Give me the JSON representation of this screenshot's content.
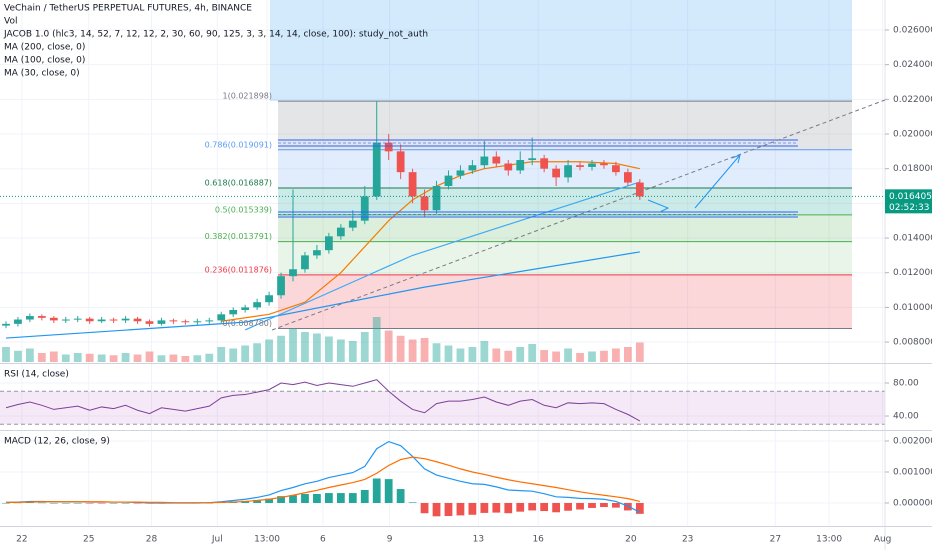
{
  "chart_data": [
    {
      "type": "candlestick",
      "title": "VeChain / TetherUS PERPETUAL FUTURES, 4h, BINANCE",
      "study": "JACOB 1.0 (hlc3, 14, 52, 7, 12, 12, 2, 30, 60, 90, 125, 3, 3, 14, 14, close, 100): study_not_auth",
      "up_color": "#26a69a",
      "down_color": "#ef5350",
      "xlim": [
        -0.5,
        73.5
      ],
      "xticks": [
        {
          "value": 1.33,
          "label": "22"
        },
        {
          "value": 6.92,
          "label": "25"
        },
        {
          "value": 12.17,
          "label": "28"
        },
        {
          "value": 17.67,
          "label": "Jul"
        },
        {
          "value": 21.83,
          "label": "13:00"
        },
        {
          "value": 26.5,
          "label": "6"
        },
        {
          "value": 32.08,
          "label": "9"
        },
        {
          "value": 39.5,
          "label": "13"
        },
        {
          "value": 44.5,
          "label": "16"
        },
        {
          "value": 52.25,
          "label": "20"
        },
        {
          "value": 57,
          "label": "23"
        },
        {
          "value": 64.33,
          "label": "27"
        },
        {
          "value": 68.83,
          "label": "13:00"
        },
        {
          "value": 73.3,
          "label": "Aug"
        }
      ],
      "ylim": [
        0.00685,
        0.02773
      ],
      "yticks": [
        {
          "value": 0.008,
          "label": "0.008000"
        },
        {
          "value": 0.01,
          "label": "0.010000"
        },
        {
          "value": 0.012,
          "label": "0.012000"
        },
        {
          "value": 0.014,
          "label": "0.014000"
        },
        {
          "value": 0.016,
          "label": "0.016000"
        },
        {
          "value": 0.018,
          "label": "0.018000"
        },
        {
          "value": 0.02,
          "label": "0.020000"
        },
        {
          "value": 0.022,
          "label": "0.022000"
        },
        {
          "value": 0.024,
          "label": "0.024000"
        },
        {
          "value": 0.026,
          "label": "0.026000"
        }
      ],
      "open": [
        0.00895,
        0.00905,
        0.0093,
        0.0095,
        0.0094,
        0.00925,
        0.0093,
        0.00935,
        0.0092,
        0.0093,
        0.00925,
        0.00935,
        0.0092,
        0.00905,
        0.00925,
        0.0092,
        0.00915,
        0.0092,
        0.00925,
        0.0096,
        0.00985,
        0.01,
        0.0103,
        0.0107,
        0.0118,
        0.0122,
        0.013,
        0.0133,
        0.0141,
        0.0146,
        0.015,
        0.0164,
        0.0195,
        0.019,
        0.0178,
        0.0164,
        0.0156,
        0.017,
        0.0176,
        0.0179,
        0.0182,
        0.0187,
        0.0183,
        0.0179,
        0.0185,
        0.0186,
        0.018,
        0.0175,
        0.0182,
        0.0181,
        0.0183,
        0.0182,
        0.0178,
        0.0172
      ],
      "high": [
        0.0092,
        0.00945,
        0.00965,
        0.0096,
        0.0095,
        0.00945,
        0.0095,
        0.00945,
        0.00945,
        0.0094,
        0.0095,
        0.00945,
        0.0093,
        0.0094,
        0.00935,
        0.0093,
        0.00935,
        0.0094,
        0.00975,
        0.01,
        0.01015,
        0.0105,
        0.0109,
        0.012,
        0.0168,
        0.0132,
        0.0136,
        0.0143,
        0.0148,
        0.0156,
        0.017,
        0.0219,
        0.02,
        0.0194,
        0.018,
        0.0168,
        0.0173,
        0.0179,
        0.0182,
        0.0185,
        0.0196,
        0.019,
        0.0185,
        0.019,
        0.0198,
        0.0188,
        0.0182,
        0.0185,
        0.0184,
        0.0185,
        0.0185,
        0.0184,
        0.018,
        0.0174
      ],
      "low": [
        0.0088,
        0.0089,
        0.00915,
        0.00925,
        0.0091,
        0.0091,
        0.00915,
        0.00905,
        0.0091,
        0.0091,
        0.0091,
        0.00905,
        0.0089,
        0.00895,
        0.00905,
        0.009,
        0.009,
        0.00905,
        0.0091,
        0.00945,
        0.0097,
        0.00985,
        0.0101,
        0.0105,
        0.0115,
        0.012,
        0.0128,
        0.0131,
        0.0139,
        0.0144,
        0.0148,
        0.0162,
        0.0185,
        0.0174,
        0.016,
        0.0152,
        0.0154,
        0.0168,
        0.0174,
        0.0177,
        0.018,
        0.0181,
        0.0176,
        0.0177,
        0.0182,
        0.0178,
        0.017,
        0.0172,
        0.0179,
        0.0179,
        0.018,
        0.0176,
        0.017,
        0.0162
      ],
      "close": [
        0.00905,
        0.0093,
        0.0095,
        0.0094,
        0.00925,
        0.0093,
        0.00935,
        0.0092,
        0.0093,
        0.00925,
        0.00935,
        0.0092,
        0.00905,
        0.00925,
        0.0092,
        0.00915,
        0.0092,
        0.00925,
        0.0096,
        0.00985,
        0.01,
        0.0103,
        0.0107,
        0.0118,
        0.0122,
        0.013,
        0.0133,
        0.0141,
        0.0146,
        0.015,
        0.0164,
        0.0195,
        0.019,
        0.0178,
        0.0164,
        0.0156,
        0.017,
        0.0176,
        0.0179,
        0.0182,
        0.0187,
        0.0183,
        0.0179,
        0.0185,
        0.0186,
        0.018,
        0.0175,
        0.0182,
        0.0181,
        0.0183,
        0.0182,
        0.0178,
        0.0172,
        0.0164
      ],
      "volume": {
        "name": "Vol",
        "values": [
          20,
          15,
          18,
          12,
          14,
          10,
          12,
          11,
          10,
          9,
          12,
          10,
          14,
          9,
          10,
          8,
          9,
          11,
          20,
          18,
          22,
          25,
          30,
          35,
          45,
          40,
          38,
          34,
          30,
          28,
          40,
          60,
          42,
          35,
          30,
          32,
          25,
          22,
          18,
          20,
          28,
          18,
          15,
          20,
          24,
          16,
          14,
          18,
          12,
          14,
          15,
          18,
          20,
          26
        ]
      },
      "series": [
        {
          "name": "MA (200, close, 0)",
          "color": "#2196f3",
          "x": [
            0,
            20,
            35,
            53
          ],
          "values": [
            0.00823,
            0.00915,
            0.01117,
            0.0132
          ]
        },
        {
          "name": "MA (100, close, 0)",
          "color": "#3fa9f5",
          "x": [
            20,
            34,
            53
          ],
          "values": [
            0.0087,
            0.013,
            0.01723
          ]
        },
        {
          "name": "MA (30, close, 0)",
          "color": "#f57c00",
          "x": [
            18,
            22,
            25,
            28,
            30,
            32,
            34,
            36,
            38,
            40,
            44,
            48,
            51,
            53
          ],
          "values": [
            0.0092,
            0.0096,
            0.0103,
            0.012,
            0.0135,
            0.015,
            0.0162,
            0.017,
            0.0176,
            0.018,
            0.0184,
            0.0184,
            0.0183,
            0.018
          ]
        }
      ],
      "fib_levels": [
        {
          "value": 0.021898,
          "label": "1(0.021898)",
          "color": "#787b86",
          "fill": "rgba(120,123,134,0.2)"
        },
        {
          "value": 0.019091,
          "label": "0.786(0.019091)",
          "color": "#5b9cf6",
          "fill": "rgba(91,156,246,0.18)"
        },
        {
          "value": 0.016887,
          "label": "0.618(0.016887)",
          "color": "#1b7a4d",
          "fill": "rgba(0,150,136,0.2)"
        },
        {
          "value": 0.015339,
          "label": "0.5(0.015339)",
          "color": "#4caf50",
          "fill": "rgba(76,175,80,0.2)"
        },
        {
          "value": 0.013791,
          "label": "0.382(0.013791)",
          "color": "#4caf50",
          "fill": "rgba(76,175,80,0.13)"
        },
        {
          "value": 0.011876,
          "label": "0.236(0.011876)",
          "color": "#f23645",
          "fill": "rgba(242,54,69,0.2)"
        },
        {
          "value": 0.00878,
          "label": "0(0.008780)",
          "color": "#787b86",
          "fill": "none"
        }
      ],
      "last_price": {
        "value": 0.016405,
        "label": "0.016405",
        "color": "#089981"
      },
      "countdown": "02:52:33"
    },
    {
      "type": "line",
      "title": "RSI (14, close)",
      "ylim": [
        25.5,
        101.8
      ],
      "yticks": [
        {
          "value": 80,
          "label": "80.00"
        },
        {
          "value": 40,
          "label": "40.00"
        }
      ],
      "band": [
        30,
        70
      ],
      "band_color": "rgba(156,39,176,0.1)",
      "series": [
        {
          "color": "#7e3f98",
          "values": [
            50,
            54,
            57,
            53,
            48,
            50,
            52,
            47,
            51,
            49,
            53,
            47,
            43,
            50,
            48,
            46,
            49,
            52,
            62,
            65,
            66,
            69,
            72,
            80,
            78,
            81,
            77,
            80,
            78,
            76,
            80,
            84,
            70,
            58,
            48,
            44,
            55,
            58,
            58,
            60,
            63,
            57,
            53,
            58,
            60,
            53,
            50,
            56,
            55,
            56,
            55,
            48,
            42,
            34
          ]
        }
      ]
    },
    {
      "type": "macd",
      "title": "MACD (12, 26, close, 9)",
      "ylim": [
        -0.00071,
        0.00229
      ],
      "yticks": [
        {
          "value": 0.002,
          "label": "0.002000"
        },
        {
          "value": 0.001,
          "label": "0.001000"
        },
        {
          "value": 0,
          "label": "0.000000"
        }
      ],
      "histogram": {
        "up_color": "#26a69a",
        "down_color": "#ef5350",
        "values": [
          0,
          1e-05,
          2e-05,
          1e-05,
          0,
          0,
          0,
          -1e-05,
          -1e-05,
          0,
          0,
          -1e-05,
          -2e-05,
          -2e-05,
          -1e-05,
          -1e-05,
          -1e-05,
          0,
          2e-05,
          5e-05,
          7e-05,
          0.0001,
          0.00014,
          0.00022,
          0.00025,
          0.00029,
          0.00029,
          0.00032,
          0.00032,
          0.00032,
          0.00042,
          0.00079,
          0.00077,
          0.00045,
          2e-05,
          -0.00033,
          -0.00043,
          -0.00042,
          -0.0004,
          -0.00038,
          -0.00032,
          -0.00031,
          -0.00033,
          -0.00028,
          -0.00024,
          -0.00026,
          -0.0003,
          -0.00025,
          -0.00021,
          -0.00016,
          -0.00013,
          -0.00015,
          -0.00024,
          -0.00035
        ]
      },
      "series": [
        {
          "color": "#2196f3",
          "values": [
            2e-05,
            3e-05,
            5e-05,
            5e-05,
            4e-05,
            4e-05,
            4e-05,
            3e-05,
            3e-05,
            3e-05,
            3e-05,
            2e-05,
            0,
            0,
            0,
            0,
            0,
            1e-05,
            4e-05,
            8e-05,
            0.00012,
            0.00018,
            0.00026,
            0.0004,
            0.0005,
            0.00062,
            0.0007,
            0.00082,
            0.0009,
            0.00098,
            0.00118,
            0.00175,
            0.00198,
            0.00185,
            0.0015,
            0.0011,
            0.0009,
            0.0008,
            0.0007,
            0.00062,
            0.0006,
            0.00052,
            0.00042,
            0.0004,
            0.00038,
            0.0003,
            0.0002,
            0.00018,
            0.00015,
            0.00014,
            0.00012,
            5e-05,
            -0.0001,
            -0.0003
          ]
        },
        {
          "color": "#ff6d00",
          "values": [
            2e-05,
            2e-05,
            3e-05,
            4e-05,
            4e-05,
            4e-05,
            4e-05,
            4e-05,
            4e-05,
            3e-05,
            3e-05,
            3e-05,
            2e-05,
            2e-05,
            1e-05,
            1e-05,
            1e-05,
            1e-05,
            2e-05,
            3e-05,
            5e-05,
            8e-05,
            0.00012,
            0.00018,
            0.00025,
            0.00033,
            0.00041,
            0.0005,
            0.00058,
            0.00066,
            0.00076,
            0.00096,
            0.00121,
            0.0014,
            0.00148,
            0.00143,
            0.00133,
            0.00122,
            0.0011,
            0.001,
            0.00092,
            0.00083,
            0.00075,
            0.00068,
            0.00062,
            0.00056,
            0.0005,
            0.00043,
            0.00036,
            0.0003,
            0.00025,
            0.0002,
            0.00014,
            5e-05
          ]
        }
      ]
    }
  ]
}
